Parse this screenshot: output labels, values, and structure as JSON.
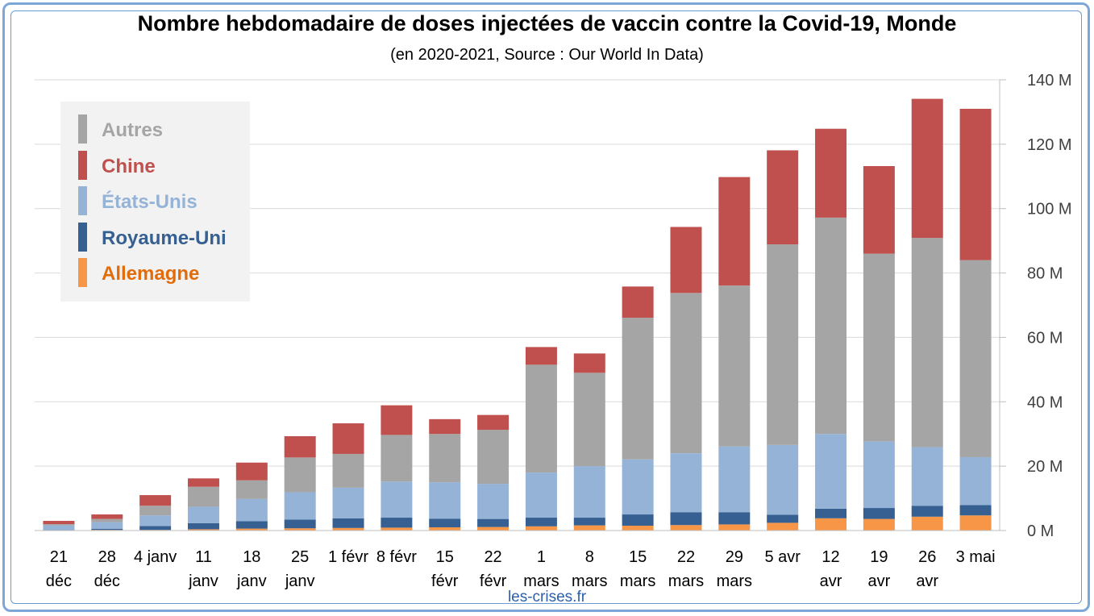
{
  "title": "Nombre hebdomadaire de doses injectées de vaccin contre la Covid-19, Monde",
  "subtitle": "(en 2020-2021, Source : Our World In Data)",
  "source_credit": "les-crises.fr",
  "colors": {
    "Autres": "#a5a5a5",
    "Chine": "#c0504d",
    "États-Unis": "#95b3d7",
    "Royaume-Uni": "#366092",
    "Allemagne": "#f79646"
  },
  "legend_order": [
    "Autres",
    "Chine",
    "États-Unis",
    "Royaume-Uni",
    "Allemagne"
  ],
  "chart_data": {
    "type": "bar",
    "stacked": true,
    "title": "Nombre hebdomadaire de doses injectées de vaccin contre la Covid-19, Monde",
    "subtitle": "(en 2020-2021, Source : Our World In Data)",
    "categories": [
      [
        "21",
        "déc"
      ],
      [
        "28",
        "déc"
      ],
      [
        "4 janv"
      ],
      [
        "11",
        "janv"
      ],
      [
        "18",
        "janv"
      ],
      [
        "25",
        "janv"
      ],
      [
        "1 févr"
      ],
      [
        "8 févr"
      ],
      [
        "15",
        "févr"
      ],
      [
        "22",
        "févr"
      ],
      [
        "1",
        "mars"
      ],
      [
        "8",
        "mars"
      ],
      [
        "15",
        "mars"
      ],
      [
        "22",
        "mars"
      ],
      [
        "29",
        "mars"
      ],
      [
        "5 avr"
      ],
      [
        "12",
        "avr"
      ],
      [
        "19",
        "avr"
      ],
      [
        "26",
        "avr"
      ],
      [
        "3 mai"
      ]
    ],
    "ylim": [
      0,
      140
    ],
    "yticks": [
      0,
      20,
      40,
      60,
      80,
      100,
      120,
      140
    ],
    "ytick_labels": [
      "0 M",
      "20 M",
      "40 M",
      "60 M",
      "80 M",
      "100 M",
      "120 M",
      "140 M"
    ],
    "y_axis_side": "right",
    "grid": true,
    "legend_position": "top-left",
    "series": [
      {
        "name": "Allemagne",
        "values": [
          0.1,
          0.2,
          0.2,
          0.4,
          0.6,
          0.7,
          0.8,
          0.9,
          1.0,
          1.1,
          1.3,
          1.6,
          1.5,
          1.7,
          1.9,
          2.4,
          3.8,
          3.6,
          4.3,
          4.7
        ]
      },
      {
        "name": "Royaume-Uni",
        "values": [
          0.1,
          0.3,
          1.2,
          1.9,
          2.3,
          2.7,
          3.0,
          3.1,
          2.7,
          2.5,
          2.7,
          2.4,
          3.5,
          4.0,
          3.8,
          2.5,
          3.0,
          3.4,
          3.4,
          3.2
        ]
      },
      {
        "name": "États-Unis",
        "values": [
          1.4,
          2.1,
          3.3,
          5.1,
          6.9,
          8.5,
          9.5,
          11.2,
          11.3,
          10.9,
          14.0,
          16.0,
          17.1,
          18.3,
          20.4,
          21.7,
          23.2,
          20.7,
          18.2,
          14.9
        ]
      },
      {
        "name": "Autres",
        "values": [
          0.4,
          1.0,
          3.0,
          6.2,
          5.8,
          10.8,
          10.5,
          14.5,
          15.0,
          16.8,
          33.5,
          29.0,
          44.0,
          49.8,
          50.0,
          62.3,
          67.2,
          58.3,
          65.0,
          61.2
        ]
      },
      {
        "name": "Chine",
        "values": [
          1.0,
          1.4,
          3.3,
          2.6,
          5.5,
          6.6,
          9.5,
          9.2,
          4.6,
          4.6,
          5.5,
          6.0,
          9.7,
          20.5,
          33.7,
          29.2,
          27.6,
          27.2,
          43.2,
          47.0
        ]
      }
    ]
  }
}
